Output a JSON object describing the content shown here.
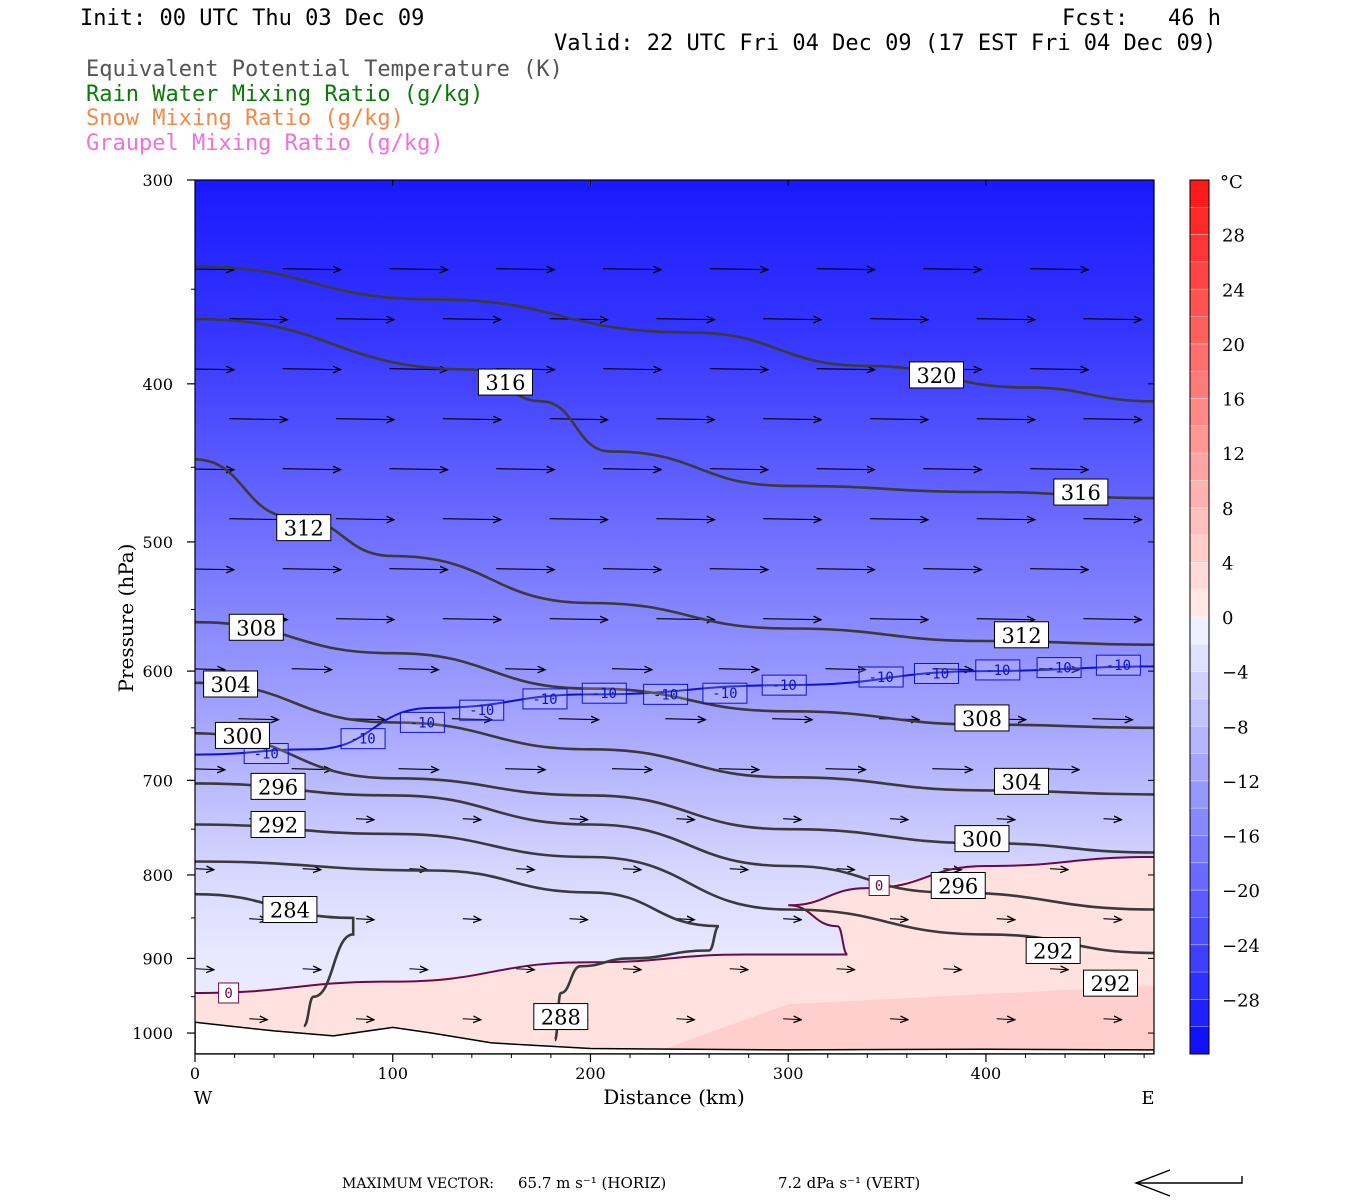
{
  "header": {
    "init": "Init: 00 UTC Thu 03 Dec 09",
    "fcst": "Fcst:   46 h",
    "valid": "Valid: 22 UTC Fri 04 Dec 09 (17 EST Fri 04 Dec 09)"
  },
  "legend": [
    {
      "label": "Equivalent Potential Temperature (K)",
      "color": "#555555"
    },
    {
      "label": "Rain Water Mixing Ratio (g/kg)",
      "color": "#0a7a0a"
    },
    {
      "label": "Snow Mixing Ratio (g/kg)",
      "color": "#f08a4a"
    },
    {
      "label": "Graupel Mixing Ratio (g/kg)",
      "color": "#f070e0"
    }
  ],
  "chart_data": {
    "type": "cross-section contour",
    "xlabel": "Distance (km)",
    "ylabel": "Pressure (hPa)",
    "xlim": [
      0,
      485
    ],
    "ylim": [
      1030,
      300
    ],
    "y_scale": "log",
    "x_ticks": [
      "0",
      "100",
      "200",
      "300",
      "400"
    ],
    "x_tick_values": [
      0,
      100,
      200,
      300,
      400
    ],
    "y_ticks": [
      "300",
      "400",
      "500",
      "600",
      "700",
      "800",
      "900",
      "1000"
    ],
    "y_tick_values": [
      300,
      400,
      500,
      600,
      700,
      800,
      900,
      1000
    ],
    "left_end": "W",
    "right_end": "E",
    "theta_e_contours": [
      {
        "label": "320",
        "points": [
          [
            0,
            339
          ],
          [
            120,
            355
          ],
          [
            250,
            372
          ],
          [
            340,
            390
          ],
          [
            420,
            402
          ],
          [
            485,
            410
          ]
        ],
        "labels_at": [
          [
            375,
            395
          ]
        ]
      },
      {
        "label": "316",
        "points": [
          [
            0,
            365
          ],
          [
            140,
            392
          ],
          [
            175,
            410
          ],
          [
            210,
            440
          ],
          [
            300,
            462
          ],
          [
            400,
            466
          ],
          [
            485,
            470
          ]
        ],
        "labels_at": [
          [
            157,
            399
          ],
          [
            448,
            466
          ]
        ]
      },
      {
        "label": "312",
        "points": [
          [
            0,
            445
          ],
          [
            50,
            483
          ],
          [
            100,
            510
          ],
          [
            200,
            545
          ],
          [
            300,
            565
          ],
          [
            400,
            575
          ],
          [
            485,
            578
          ]
        ],
        "labels_at": [
          [
            55,
            490
          ],
          [
            418,
            570
          ]
        ]
      },
      {
        "label": "308",
        "points": [
          [
            0,
            560
          ],
          [
            100,
            585
          ],
          [
            200,
            615
          ],
          [
            300,
            635
          ],
          [
            400,
            647
          ],
          [
            485,
            650
          ]
        ],
        "labels_at": [
          [
            31,
            564
          ],
          [
            398,
            641
          ]
        ]
      },
      {
        "label": "304",
        "points": [
          [
            0,
            610
          ],
          [
            100,
            645
          ],
          [
            200,
            670
          ],
          [
            300,
            697
          ],
          [
            400,
            710
          ],
          [
            485,
            714
          ]
        ],
        "labels_at": [
          [
            18,
            611
          ],
          [
            418,
            701
          ]
        ]
      },
      {
        "label": "300",
        "points": [
          [
            0,
            655
          ],
          [
            100,
            698
          ],
          [
            200,
            715
          ],
          [
            300,
            750
          ],
          [
            400,
            765
          ],
          [
            485,
            775
          ]
        ],
        "labels_at": [
          [
            24,
            657
          ],
          [
            398,
            760
          ]
        ]
      },
      {
        "label": "296",
        "points": [
          [
            0,
            703
          ],
          [
            100,
            715
          ],
          [
            200,
            745
          ],
          [
            300,
            790
          ],
          [
            380,
            820
          ],
          [
            485,
            840
          ]
        ],
        "labels_at": [
          [
            42,
            706
          ],
          [
            386,
            812
          ]
        ]
      },
      {
        "label": "292",
        "points": [
          [
            0,
            745
          ],
          [
            100,
            755
          ],
          [
            200,
            780
          ],
          [
            300,
            840
          ],
          [
            400,
            870
          ],
          [
            485,
            893
          ]
        ],
        "labels_at": [
          [
            42,
            745
          ],
          [
            434,
            890
          ],
          [
            463,
            932
          ]
        ]
      },
      {
        "label": "288",
        "points": [
          [
            0,
            785
          ],
          [
            120,
            795
          ],
          [
            200,
            820
          ],
          [
            265,
            860
          ],
          [
            260,
            890
          ],
          [
            220,
            900
          ],
          [
            195,
            910
          ],
          [
            185,
            945
          ],
          [
            182,
            1010
          ]
        ],
        "labels_at": [
          [
            185,
            977
          ]
        ]
      },
      {
        "label": "284",
        "points": [
          [
            0,
            822
          ],
          [
            80,
            850
          ],
          [
            80,
            870
          ],
          [
            60,
            950
          ],
          [
            55,
            990
          ]
        ],
        "labels_at": [
          [
            48,
            840
          ]
        ]
      }
    ],
    "temperature_contours": [
      {
        "label": "-10",
        "color": "#1010d0",
        "points": [
          [
            0,
            675
          ],
          [
            60,
            670
          ],
          [
            120,
            632
          ],
          [
            200,
            620
          ],
          [
            300,
            612
          ],
          [
            400,
            600
          ],
          [
            485,
            596
          ]
        ],
        "labels_at": [
          [
            36,
            674
          ],
          [
            85,
            660
          ],
          [
            115,
            645
          ],
          [
            145,
            634
          ],
          [
            177,
            624
          ],
          [
            207,
            619
          ],
          [
            238,
            620
          ],
          [
            268,
            619
          ],
          [
            298,
            612
          ],
          [
            347,
            605
          ],
          [
            375,
            602
          ],
          [
            406,
            599
          ],
          [
            437,
            597
          ],
          [
            467,
            595
          ]
        ]
      },
      {
        "label": "0",
        "color": "#6a0a4a",
        "points": [
          [
            0,
            945
          ],
          [
            100,
            930
          ],
          [
            200,
            905
          ],
          [
            280,
            895
          ],
          [
            330,
            895
          ],
          [
            325,
            860
          ],
          [
            300,
            835
          ],
          [
            340,
            815
          ],
          [
            400,
            790
          ],
          [
            485,
            780
          ]
        ],
        "labels_at": [
          [
            17,
            945
          ],
          [
            346,
            812
          ]
        ]
      }
    ],
    "shading": {
      "variable": "temperature",
      "unit": "°C",
      "colorbar_ticks": [
        "28",
        "24",
        "20",
        "16",
        "12",
        "8",
        "4",
        "0",
        "-4",
        "-8",
        "-12",
        "-16",
        "-20",
        "-24",
        "-28"
      ],
      "colorbar_tick_values": [
        28,
        24,
        20,
        16,
        12,
        8,
        4,
        0,
        -4,
        -8,
        -12,
        -16,
        -20,
        -24,
        -28
      ],
      "range": [
        -32,
        32
      ]
    },
    "wind_vectors": {
      "note": "vectors point west to east, stronger aloft"
    },
    "maximum_vector": {
      "horizontal": "65.7 m s⁻¹ (HORIZ)",
      "vertical": "7.2 dPa s⁻¹ (VERT)"
    }
  },
  "footer": {
    "label": "MAXIMUM VECTOR:",
    "horizontal": "65.7 m s⁻¹ (HORIZ)",
    "vertical": "7.2 dPa s⁻¹ (VERT)"
  }
}
